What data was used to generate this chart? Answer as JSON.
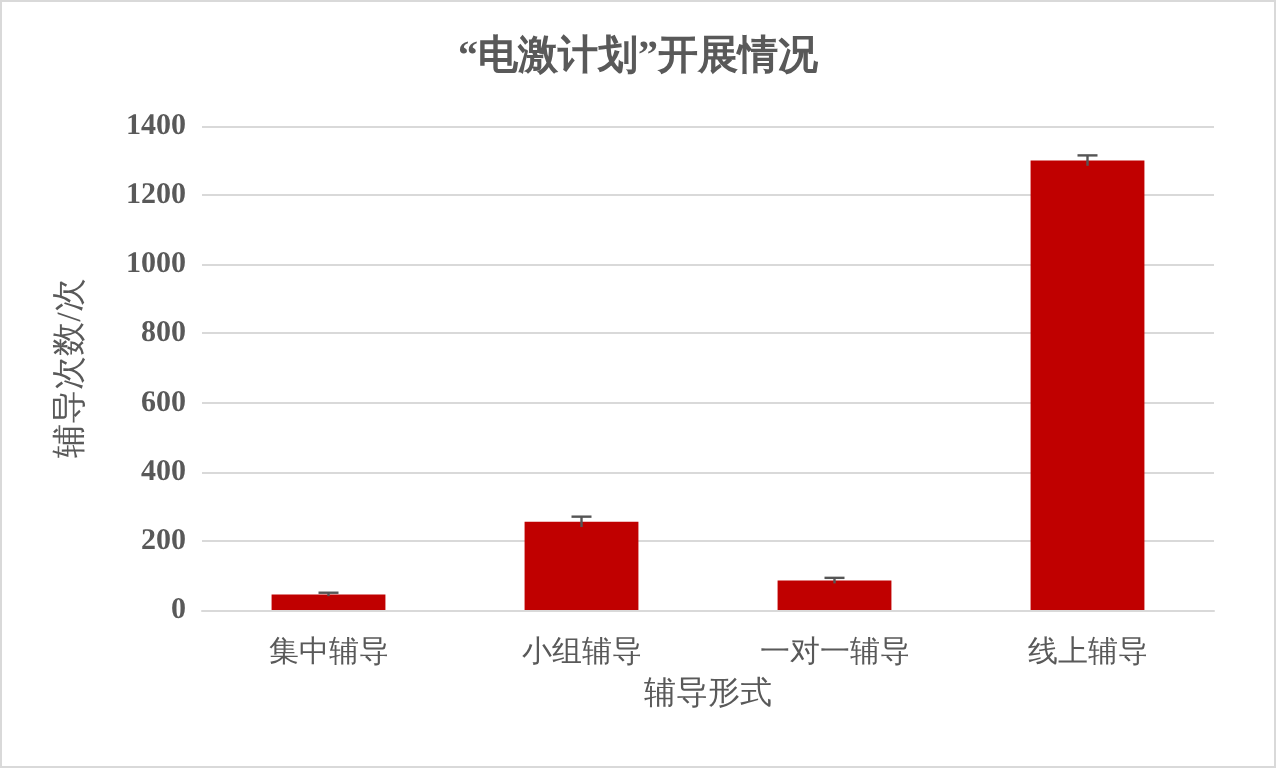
{
  "chart_data": {
    "type": "bar",
    "title": "“电激计划”开展情况",
    "xlabel": "辅导形式",
    "ylabel": "辅导次数/次",
    "categories": [
      "集中辅导",
      "小组辅导",
      "一对一辅导",
      "线上辅导"
    ],
    "values": [
      45,
      255,
      85,
      1300
    ],
    "errors": [
      5,
      15,
      8,
      15
    ],
    "color": "#c00000",
    "ylim": [
      0,
      1400
    ],
    "yticks": [
      0,
      200,
      400,
      600,
      800,
      1000,
      1200,
      1400
    ],
    "grid": "y"
  }
}
